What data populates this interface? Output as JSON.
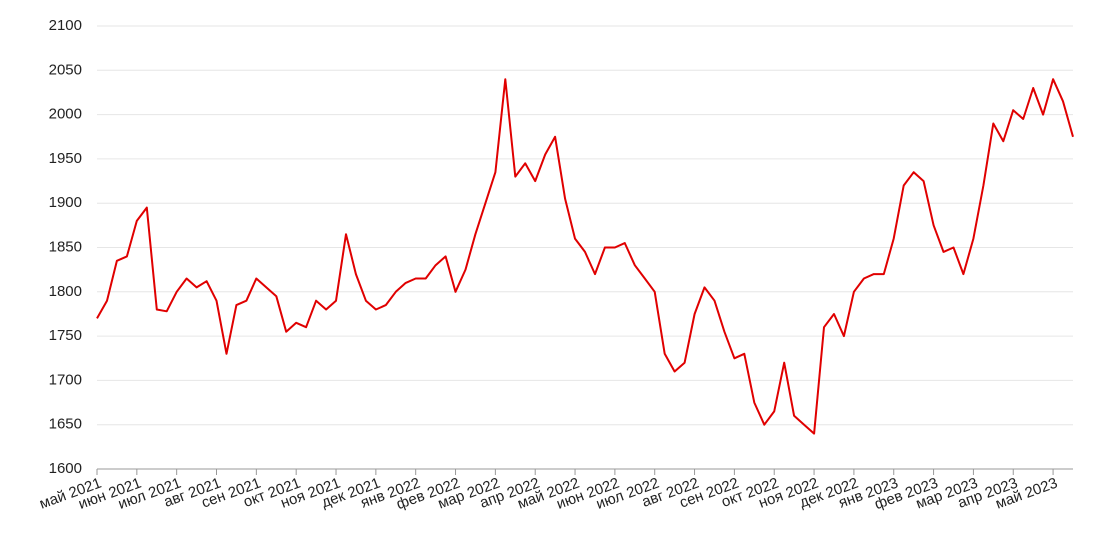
{
  "chart_data": {
    "type": "line",
    "categories": [
      "май 2021",
      null,
      null,
      null,
      "июн 2021",
      null,
      null,
      null,
      "июл 2021",
      null,
      null,
      null,
      "авг 2021",
      null,
      null,
      null,
      "сен 2021",
      null,
      null,
      null,
      "окт 2021",
      null,
      null,
      null,
      "ноя 2021",
      null,
      null,
      null,
      "дек 2021",
      null,
      null,
      null,
      "янв 2022",
      null,
      null,
      null,
      "фев 2022",
      null,
      null,
      null,
      "мар 2022",
      null,
      null,
      null,
      "апр 2022",
      null,
      null,
      null,
      "май 2022",
      null,
      null,
      null,
      "июн 2022",
      null,
      null,
      null,
      "июл 2022",
      null,
      null,
      null,
      "авг 2022",
      null,
      null,
      null,
      "сен 2022",
      null,
      null,
      null,
      "окт 2022",
      null,
      null,
      null,
      "ноя 2022",
      null,
      null,
      null,
      "дек 2022",
      null,
      null,
      null,
      "янв 2023",
      null,
      null,
      null,
      "фев 2023",
      null,
      null,
      null,
      "мар 2023",
      null,
      null,
      null,
      "апр 2023",
      null,
      null,
      null,
      "май 2023",
      null,
      null
    ],
    "values": [
      1770,
      1790,
      1835,
      1840,
      1880,
      1895,
      1780,
      1778,
      1800,
      1815,
      1805,
      1812,
      1790,
      1730,
      1785,
      1790,
      1815,
      1805,
      1795,
      1755,
      1765,
      1760,
      1790,
      1780,
      1790,
      1865,
      1820,
      1790,
      1780,
      1785,
      1800,
      1810,
      1815,
      1815,
      1830,
      1840,
      1800,
      1825,
      1865,
      1900,
      1935,
      2040,
      1930,
      1945,
      1925,
      1955,
      1975,
      1905,
      1860,
      1845,
      1820,
      1850,
      1850,
      1855,
      1830,
      1815,
      1800,
      1730,
      1710,
      1720,
      1775,
      1805,
      1790,
      1755,
      1725,
      1730,
      1675,
      1650,
      1665,
      1720,
      1660,
      1650,
      1640,
      1760,
      1775,
      1750,
      1800,
      1815,
      1820,
      1820,
      1860,
      1920,
      1935,
      1925,
      1875,
      1845,
      1850,
      1820,
      1860,
      1920,
      1990,
      1970,
      2005,
      1995,
      2030,
      2000,
      2040,
      2015,
      1975
    ],
    "color": "#e00000",
    "ylim": [
      1600,
      2100
    ],
    "yticks": [
      1600,
      1650,
      1700,
      1750,
      1800,
      1850,
      1900,
      1950,
      2000,
      2050,
      2100
    ],
    "grid": true
  }
}
